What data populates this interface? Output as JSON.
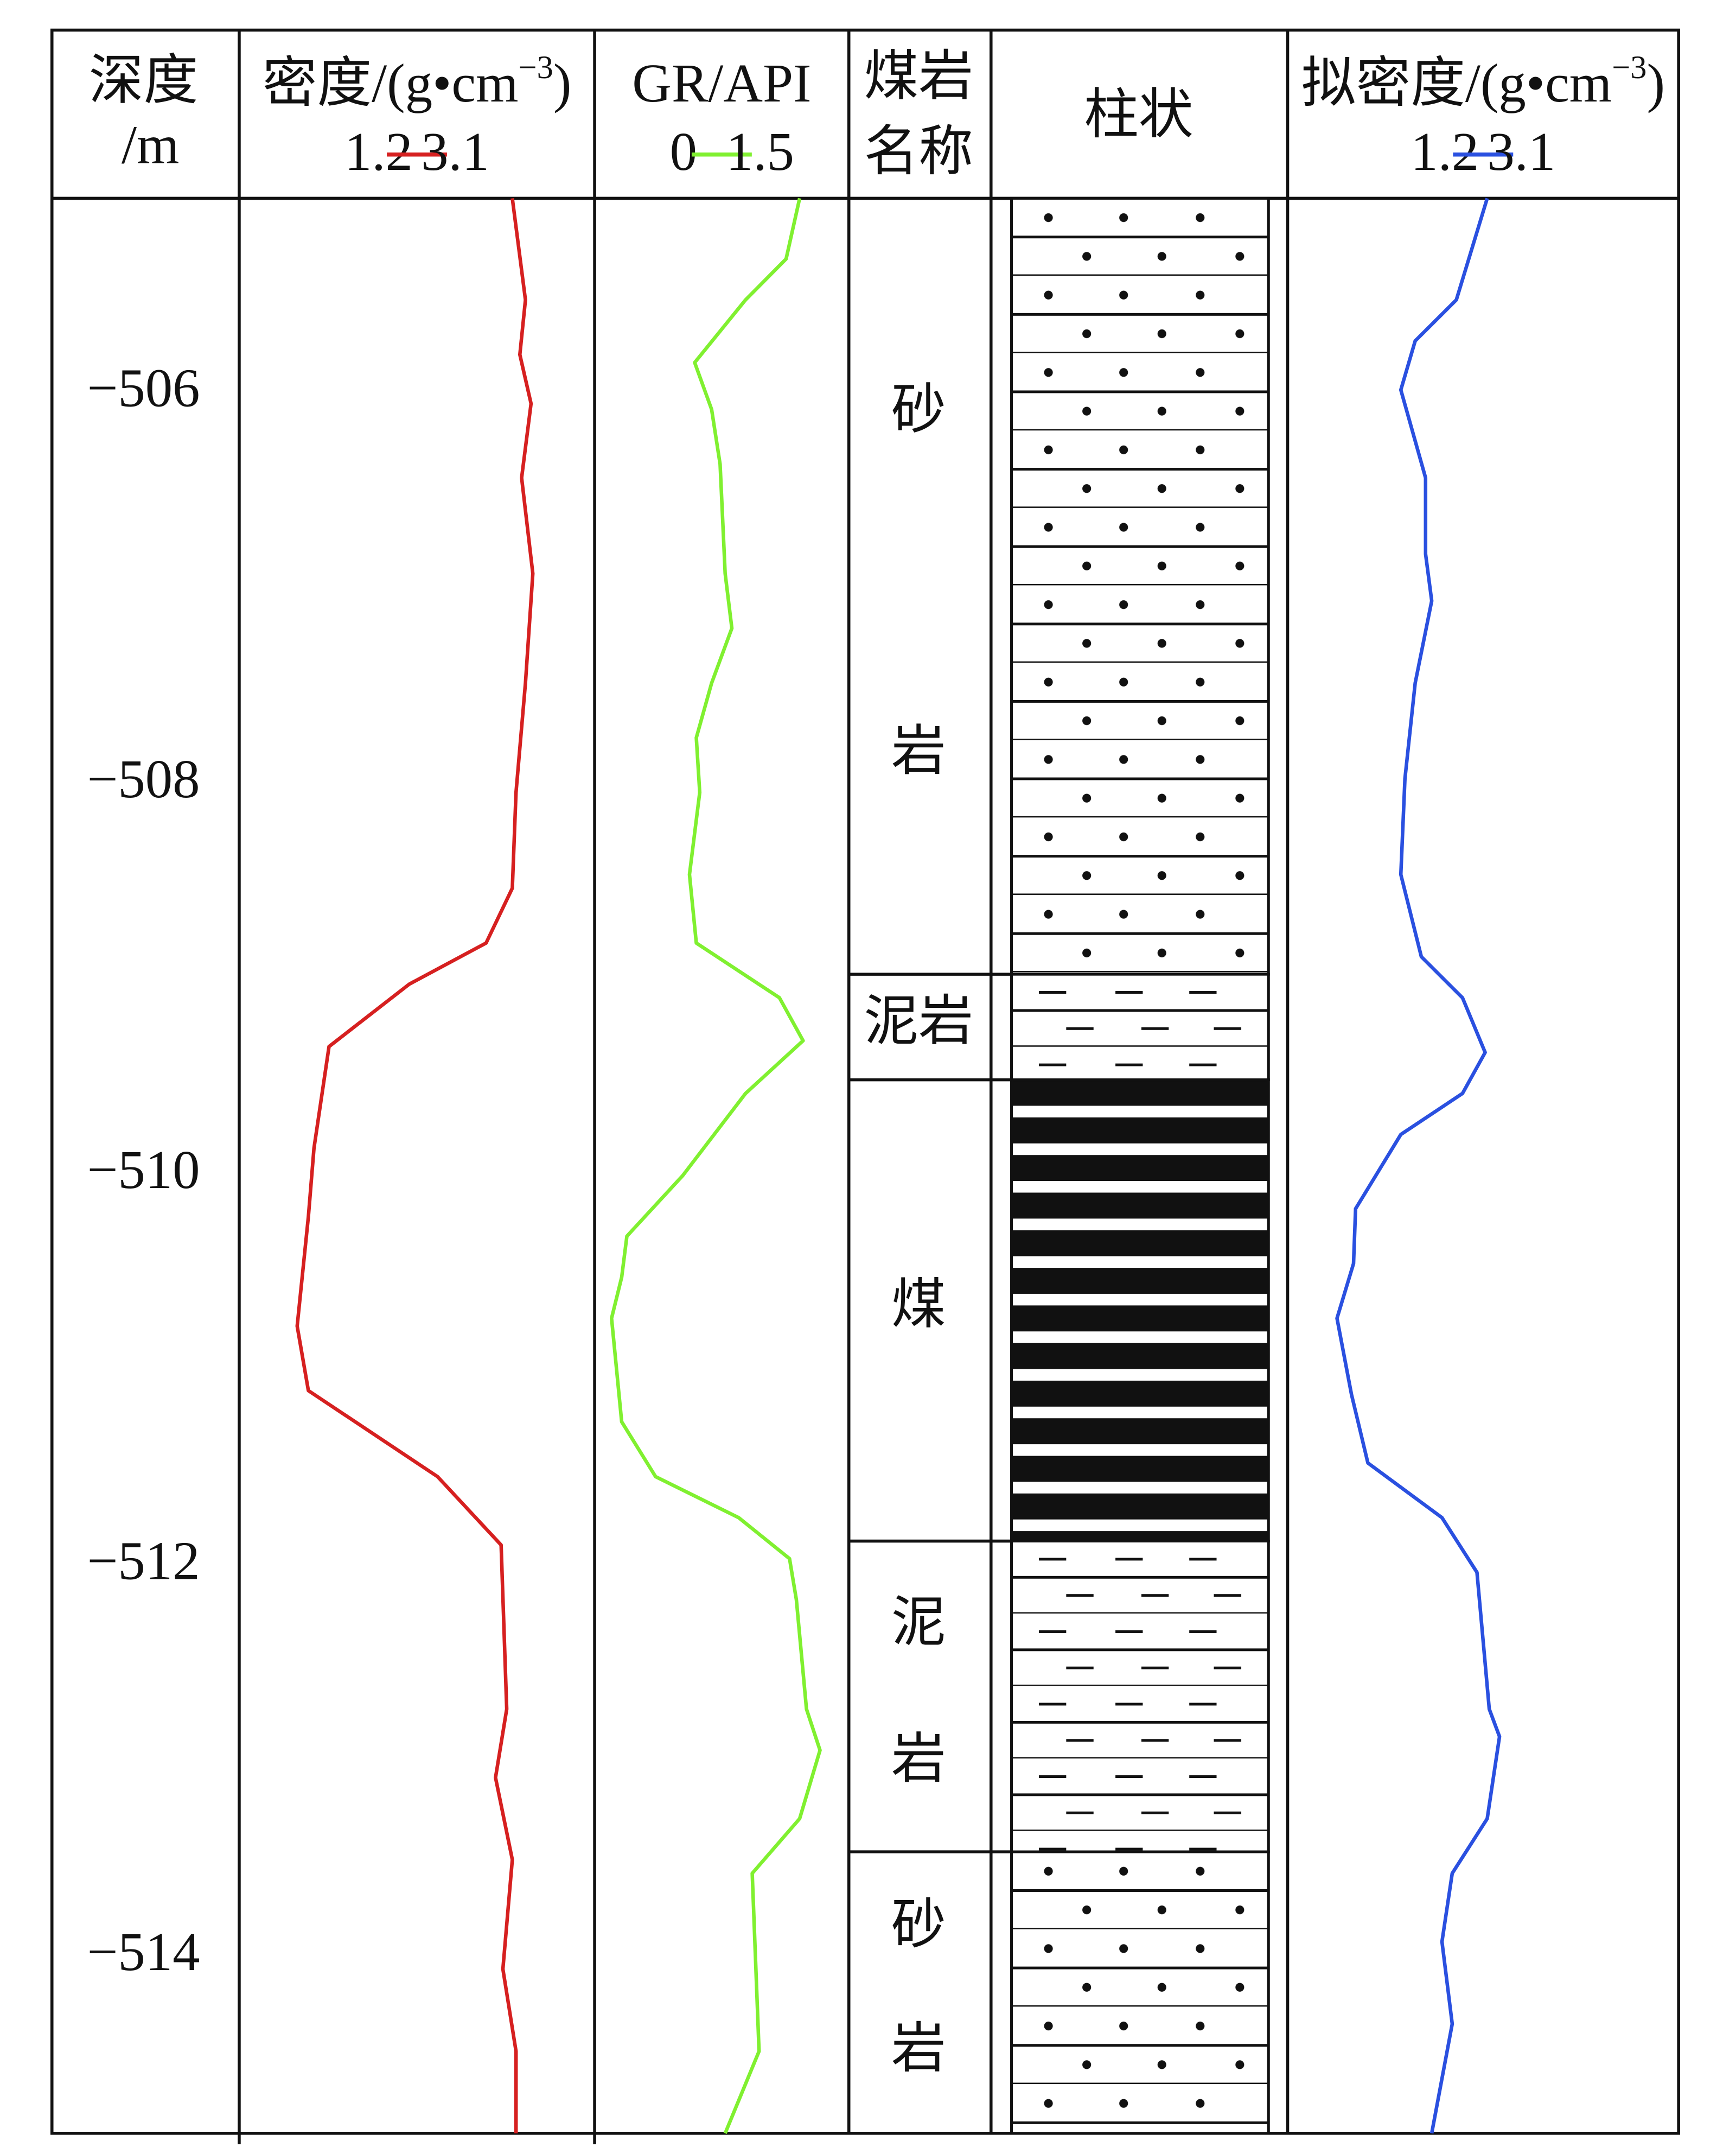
{
  "chart_data": {
    "type": "well-log",
    "depth_axis": {
      "title_lines": [
        "深度",
        "/m"
      ],
      "ylim": [
        -505,
        -514.9
      ],
      "yticks": [
        {
          "value": -506,
          "label": "−506"
        },
        {
          "value": -508,
          "label": "−508"
        },
        {
          "value": -510,
          "label": "−510"
        },
        {
          "value": -512,
          "label": "−512"
        },
        {
          "value": -514,
          "label": "−514"
        }
      ]
    },
    "tracks": [
      {
        "title": "密度/(g•cm",
        "superscript": "−3",
        "title_end": ")",
        "min": 1.2,
        "max": 3.1,
        "color": "#d62020",
        "depth": [
          -505.0,
          -505.52,
          -505.8,
          -506.05,
          -506.43,
          -506.92,
          -507.48,
          -508.04,
          -508.53,
          -508.81,
          -509.02,
          -509.34,
          -509.86,
          -510.21,
          -510.77,
          -511.1,
          -511.54,
          -511.89,
          -512.73,
          -513.08,
          -513.5,
          -514.06,
          -514.48,
          -514.9
        ],
        "values": [
          2.66,
          2.73,
          2.7,
          2.76,
          2.71,
          2.77,
          2.73,
          2.68,
          2.66,
          2.52,
          2.11,
          1.68,
          1.6,
          1.57,
          1.51,
          1.57,
          2.26,
          2.6,
          2.63,
          2.57,
          2.66,
          2.61,
          2.68,
          2.68
        ]
      },
      {
        "title": "GR/API",
        "min": 0,
        "max": 1.5,
        "color": "#80f030",
        "depth": [
          -505.0,
          -505.31,
          -505.52,
          -505.84,
          -506.08,
          -506.36,
          -506.92,
          -507.2,
          -507.48,
          -507.76,
          -508.04,
          -508.46,
          -508.81,
          -509.09,
          -509.31,
          -509.58,
          -510.0,
          -510.31,
          -510.52,
          -510.73,
          -511.26,
          -511.54,
          -511.75,
          -511.96,
          -512.17,
          -512.73,
          -512.94,
          -513.29,
          -513.57,
          -514.48,
          -514.9
        ],
        "values": [
          1.21,
          1.13,
          0.89,
          0.59,
          0.69,
          0.74,
          0.77,
          0.81,
          0.69,
          0.6,
          0.62,
          0.56,
          0.6,
          1.09,
          1.23,
          0.89,
          0.52,
          0.19,
          0.16,
          0.1,
          0.16,
          0.36,
          0.85,
          1.15,
          1.19,
          1.25,
          1.33,
          1.21,
          0.93,
          0.97,
          0.77
        ]
      },
      {
        "title": "拟密度/(g•cm",
        "superscript": "−3",
        "title_end": ")",
        "min": 1.2,
        "max": 3.1,
        "color": "#2a50e0",
        "depth": [
          -505.0,
          -505.52,
          -505.73,
          -505.98,
          -506.43,
          -506.82,
          -507.06,
          -507.48,
          -507.97,
          -508.46,
          -508.88,
          -509.09,
          -509.37,
          -509.58,
          -509.79,
          -510.17,
          -510.45,
          -510.73,
          -511.12,
          -511.47,
          -511.75,
          -512.03,
          -512.73,
          -512.87,
          -513.29,
          -513.57,
          -513.92,
          -514.34,
          -514.9
        ],
        "values": [
          2.17,
          2.02,
          1.82,
          1.75,
          1.87,
          1.87,
          1.9,
          1.82,
          1.77,
          1.75,
          1.85,
          2.05,
          2.16,
          2.05,
          1.75,
          1.53,
          1.52,
          1.44,
          1.51,
          1.59,
          1.95,
          2.12,
          2.18,
          2.23,
          2.17,
          2.0,
          1.95,
          2.0,
          1.9
        ]
      }
    ],
    "lithology": {
      "name_header": [
        "煤岩",
        "名称"
      ],
      "column_header": "柱状",
      "layers": [
        {
          "name_lines": [
            "砂",
            "岩"
          ],
          "top": -505,
          "bottom": -508.97,
          "pattern": "sand"
        },
        {
          "name_lines": [
            "泥岩"
          ],
          "top": -508.97,
          "bottom": -509.51,
          "pattern": "mud"
        },
        {
          "name_lines": [
            "煤"
          ],
          "top": -509.51,
          "bottom": -511.87,
          "pattern": "coal"
        },
        {
          "name_lines": [
            "泥",
            "岩"
          ],
          "top": -511.87,
          "bottom": -513.46,
          "pattern": "mud"
        },
        {
          "name_lines": [
            "砂",
            "岩"
          ],
          "top": -513.46,
          "bottom": -514.9,
          "pattern": "sand"
        }
      ]
    }
  }
}
